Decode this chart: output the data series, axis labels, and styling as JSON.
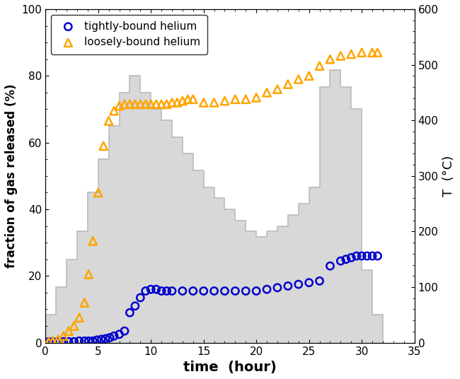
{
  "title": "",
  "xlabel": "time  (hour)",
  "ylabel": "fraction of gas released (%)",
  "ylabel_right": "T  (°C)",
  "xlim": [
    0,
    35
  ],
  "ylim": [
    0,
    100
  ],
  "ylim_right": [
    0,
    600
  ],
  "xticks": [
    0,
    5,
    10,
    15,
    20,
    25,
    30,
    35
  ],
  "yticks": [
    0,
    20,
    40,
    60,
    80,
    100
  ],
  "yticks_right": [
    0,
    100,
    200,
    300,
    400,
    500,
    600
  ],
  "tightly_bound_x": [
    0.3,
    0.7,
    1.2,
    1.7,
    2.2,
    2.7,
    3.2,
    3.7,
    4.1,
    4.5,
    4.9,
    5.3,
    5.7,
    6.1,
    6.5,
    7.0,
    7.5,
    8.0,
    8.5,
    9.0,
    9.5,
    10.0,
    10.5,
    11.0,
    11.5,
    12.0,
    13.0,
    14.0,
    15.0,
    16.0,
    17.0,
    18.0,
    19.0,
    20.0,
    21.0,
    22.0,
    23.0,
    24.0,
    25.0,
    26.0,
    27.0,
    28.0,
    28.5,
    29.0,
    29.5,
    30.0,
    30.5,
    31.0,
    31.5
  ],
  "tightly_bound_y": [
    0.3,
    0.3,
    0.3,
    0.3,
    0.3,
    0.3,
    0.5,
    0.5,
    0.5,
    0.5,
    0.8,
    1.0,
    1.2,
    1.5,
    2.0,
    2.5,
    3.5,
    9.0,
    11.0,
    13.5,
    15.5,
    16.0,
    16.0,
    15.5,
    15.5,
    15.5,
    15.5,
    15.5,
    15.5,
    15.5,
    15.5,
    15.5,
    15.5,
    15.5,
    16.0,
    16.5,
    17.0,
    17.5,
    18.0,
    18.5,
    23.0,
    24.5,
    25.0,
    25.5,
    26.0,
    26.0,
    26.0,
    26.0,
    26.0
  ],
  "loosely_bound_x": [
    0.3,
    0.7,
    1.2,
    1.7,
    2.2,
    2.7,
    3.2,
    3.7,
    4.1,
    4.5,
    5.0,
    5.5,
    6.0,
    6.5,
    7.0,
    7.5,
    8.0,
    8.5,
    9.0,
    9.5,
    10.0,
    10.5,
    11.0,
    11.5,
    12.0,
    12.5,
    13.0,
    13.5,
    14.0,
    15.0,
    16.0,
    17.0,
    18.0,
    19.0,
    20.0,
    21.0,
    22.0,
    23.0,
    24.0,
    25.0,
    26.0,
    27.0,
    28.0,
    29.0,
    30.0,
    31.0,
    31.5
  ],
  "loosely_bound_y": [
    0.3,
    0.5,
    1.0,
    2.0,
    3.5,
    5.0,
    7.5,
    12.0,
    20.5,
    30.5,
    45.0,
    59.0,
    66.5,
    69.5,
    71.0,
    71.5,
    71.5,
    71.5,
    71.5,
    71.5,
    71.5,
    71.5,
    71.5,
    71.5,
    72.0,
    72.0,
    72.5,
    73.0,
    73.0,
    72.0,
    72.0,
    72.5,
    73.0,
    73.0,
    73.5,
    75.0,
    76.0,
    77.5,
    79.0,
    80.0,
    83.0,
    85.0,
    86.0,
    86.5,
    87.0,
    87.0,
    87.0
  ],
  "step_x": [
    0,
    0,
    1,
    1,
    2,
    2,
    3,
    3,
    4,
    4,
    5,
    5,
    6,
    6,
    7,
    7,
    8,
    8,
    9,
    9,
    10,
    10,
    11,
    11,
    12,
    12,
    13,
    13,
    14,
    14,
    15,
    15,
    16,
    16,
    17,
    17,
    18,
    18,
    19,
    19,
    20,
    20,
    21,
    21,
    22,
    22,
    23,
    23,
    24,
    24,
    25,
    25,
    26,
    26,
    27,
    27,
    28,
    28,
    29,
    29,
    30,
    30,
    31,
    31,
    32,
    32
  ],
  "step_y_celsius": [
    0,
    50,
    50,
    100,
    100,
    150,
    150,
    200,
    200,
    270,
    270,
    330,
    330,
    390,
    390,
    450,
    450,
    480,
    480,
    450,
    450,
    420,
    420,
    400,
    400,
    370,
    370,
    340,
    340,
    310,
    310,
    280,
    280,
    260,
    260,
    240,
    240,
    220,
    220,
    200,
    200,
    190,
    190,
    200,
    200,
    210,
    210,
    230,
    230,
    250,
    250,
    280,
    280,
    460,
    460,
    490,
    490,
    460,
    460,
    420,
    420,
    130,
    130,
    50,
    50,
    0
  ],
  "tightly_color": "#0000cc",
  "loosely_color": "#FFA500",
  "step_color": "#bbbbbb",
  "step_fill_color": "#d8d8d8",
  "background_color": "#ffffff",
  "legend_label_tight": "tightly-bound helium",
  "legend_label_loose": "loosely-bound helium",
  "figsize": [
    6.5,
    5.36
  ],
  "dpi": 100
}
